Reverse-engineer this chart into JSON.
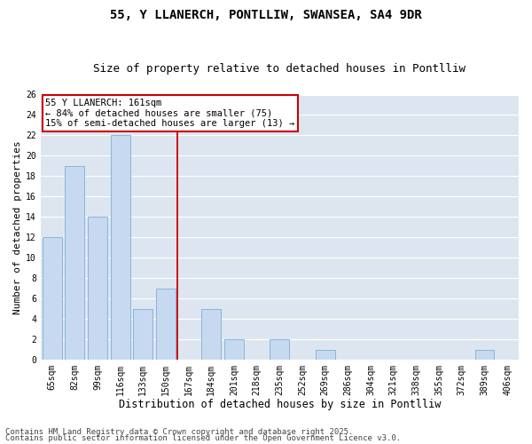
{
  "title1": "55, Y LLANERCH, PONTLLIW, SWANSEA, SA4 9DR",
  "title2": "Size of property relative to detached houses in Pontlliw",
  "xlabel": "Distribution of detached houses by size in Pontlliw",
  "ylabel": "Number of detached properties",
  "categories": [
    "65sqm",
    "82sqm",
    "99sqm",
    "116sqm",
    "133sqm",
    "150sqm",
    "167sqm",
    "184sqm",
    "201sqm",
    "218sqm",
    "235sqm",
    "252sqm",
    "269sqm",
    "286sqm",
    "304sqm",
    "321sqm",
    "338sqm",
    "355sqm",
    "372sqm",
    "389sqm",
    "406sqm"
  ],
  "values": [
    12,
    19,
    14,
    22,
    5,
    7,
    0,
    5,
    2,
    0,
    2,
    0,
    1,
    0,
    0,
    0,
    0,
    0,
    0,
    1,
    0
  ],
  "bar_color": "#c6d9f0",
  "bar_edge_color": "#7bafd4",
  "red_line_index": 6,
  "annotation_line1": "55 Y LLANERCH: 161sqm",
  "annotation_line2": "← 84% of detached houses are smaller (75)",
  "annotation_line3": "15% of semi-detached houses are larger (13) →",
  "annotation_box_color": "#ffffff",
  "annotation_box_edge": "#cc0000",
  "ylim": [
    0,
    26
  ],
  "yticks": [
    0,
    2,
    4,
    6,
    8,
    10,
    12,
    14,
    16,
    18,
    20,
    22,
    24,
    26
  ],
  "background_color": "#dde6f0",
  "grid_color": "#ffffff",
  "footer1": "Contains HM Land Registry data © Crown copyright and database right 2025.",
  "footer2": "Contains public sector information licensed under the Open Government Licence v3.0.",
  "fig_background": "#ffffff",
  "title_fontsize": 10,
  "subtitle_fontsize": 9,
  "xlabel_fontsize": 8.5,
  "ylabel_fontsize": 8,
  "tick_fontsize": 7,
  "footer_fontsize": 6.5,
  "annot_fontsize": 7.5
}
